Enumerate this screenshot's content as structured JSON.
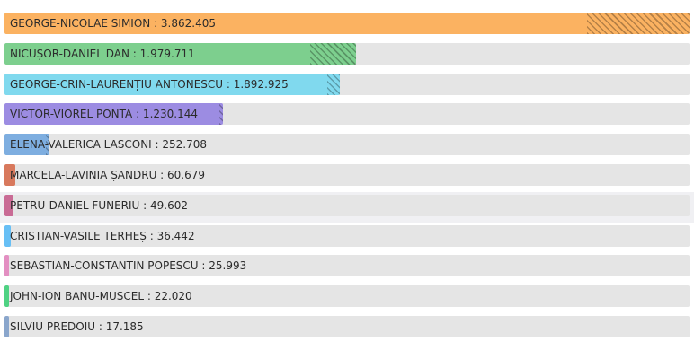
{
  "chart_data": {
    "type": "bar",
    "orientation": "horizontal",
    "grid": false,
    "xlim": [
      0,
      3862405
    ],
    "categories": [
      "GEORGE-NICOLAE SIMION",
      "NICUȘOR-DANIEL DAN",
      "GEORGE-CRIN-LAURENȚIU ANTONESCU",
      "VICTOR-VIOREL PONTA",
      "ELENA-VALERICA LASCONI",
      "MARCELA-LAVINIA ȘANDRU",
      "PETRU-DANIEL FUNERIU",
      "CRISTIAN-VASILE TERHEȘ",
      "SEBASTIAN-CONSTANTIN POPESCU",
      "JOHN-ION BANU-MUSCEL",
      "SILVIU PREDOIU"
    ],
    "values": [
      3862405,
      1979711,
      1892925,
      1230144,
      252708,
      60679,
      49602,
      36442,
      25993,
      22020,
      17185
    ],
    "labels": [
      "GEORGE-NICOLAE SIMION : 3.862.405",
      "NICUȘOR-DANIEL DAN : 1.979.711",
      "GEORGE-CRIN-LAURENȚIU ANTONESCU : 1.892.925",
      "VICTOR-VIOREL PONTA : 1.230.144",
      "ELENA-VALERICA LASCONI : 252.708",
      "MARCELA-LAVINIA ȘANDRU : 60.679",
      "PETRU-DANIEL FUNERIU : 49.602",
      "CRISTIAN-VASILE TERHEȘ : 36.442",
      "SEBASTIAN-CONSTANTIN POPESCU : 25.993",
      "JOHN-ION BANU-MUSCEL : 22.020",
      "SILVIU PREDOIU : 17.185"
    ],
    "hatched_portion": [
      0.15,
      0.13,
      0.04,
      0.005,
      0.05,
      0,
      0,
      0,
      0,
      0,
      0
    ],
    "colors": [
      "#fbb261",
      "#7dcf8e",
      "#80d9ee",
      "#9c8ce2",
      "#7eaee0",
      "#d8795d",
      "#c96b95",
      "#67bff5",
      "#e38fc2",
      "#4fd283",
      "#8aa6cc"
    ],
    "track_color": "#e5e5e5",
    "highlighted_row": 6
  }
}
